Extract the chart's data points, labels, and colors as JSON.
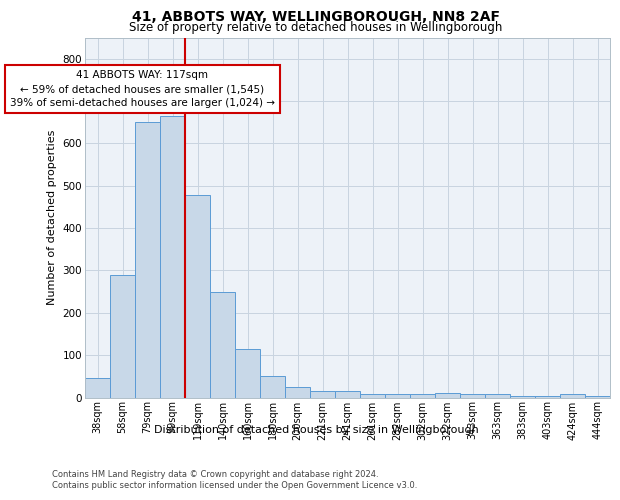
{
  "title1": "41, ABBOTS WAY, WELLINGBOROUGH, NN8 2AF",
  "title2": "Size of property relative to detached houses in Wellingborough",
  "xlabel": "Distribution of detached houses by size in Wellingborough",
  "ylabel": "Number of detached properties",
  "categories": [
    "38sqm",
    "58sqm",
    "79sqm",
    "99sqm",
    "119sqm",
    "140sqm",
    "160sqm",
    "180sqm",
    "200sqm",
    "221sqm",
    "241sqm",
    "261sqm",
    "282sqm",
    "302sqm",
    "322sqm",
    "343sqm",
    "363sqm",
    "383sqm",
    "403sqm",
    "424sqm",
    "444sqm"
  ],
  "values": [
    45,
    290,
    650,
    665,
    478,
    250,
    115,
    50,
    25,
    15,
    15,
    8,
    8,
    8,
    10,
    8,
    8,
    3,
    3,
    8,
    3
  ],
  "bar_color": "#c8d8e8",
  "bar_edge_color": "#5b9bd5",
  "grid_color": "#c8d4e0",
  "background_color": "#edf2f8",
  "property_line_color": "#cc0000",
  "annotation_text": "41 ABBOTS WAY: 117sqm\n← 59% of detached houses are smaller (1,545)\n39% of semi-detached houses are larger (1,024) →",
  "annotation_box_color": "#ffffff",
  "annotation_border_color": "#cc0000",
  "footer1": "Contains HM Land Registry data © Crown copyright and database right 2024.",
  "footer2": "Contains public sector information licensed under the Open Government Licence v3.0.",
  "ylim": [
    0,
    850
  ],
  "yticks": [
    0,
    100,
    200,
    300,
    400,
    500,
    600,
    700,
    800
  ],
  "prop_line_index": 3.5
}
